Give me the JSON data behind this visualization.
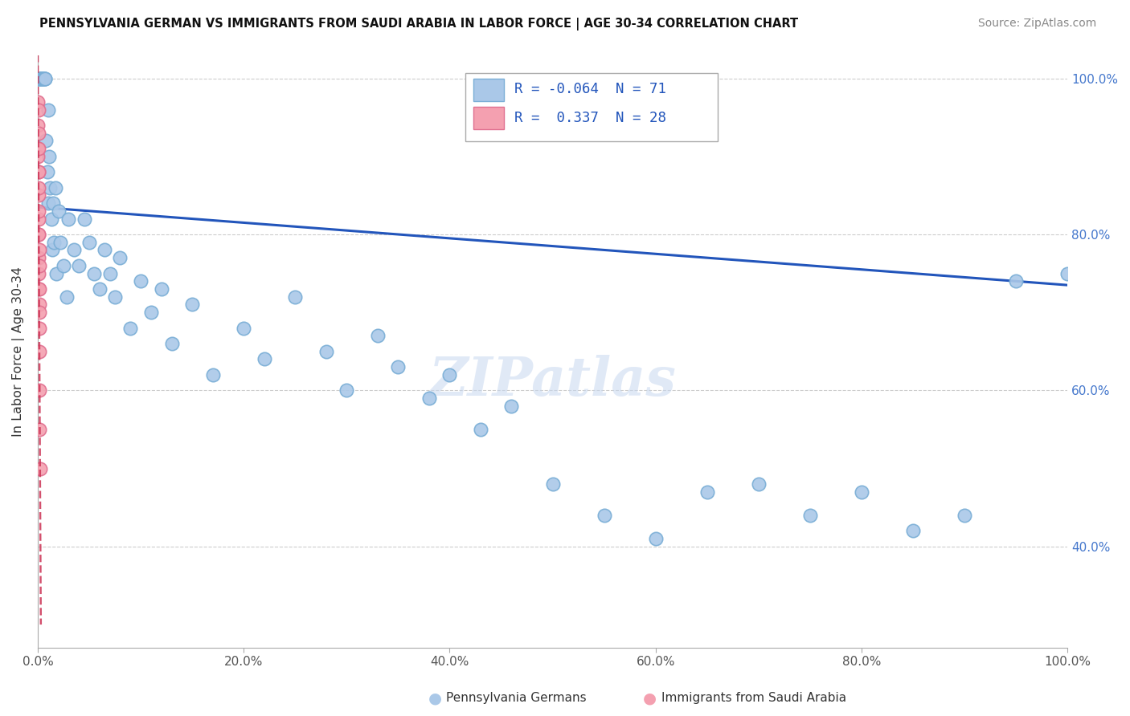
{
  "title": "PENNSYLVANIA GERMAN VS IMMIGRANTS FROM SAUDI ARABIA IN LABOR FORCE | AGE 30-34 CORRELATION CHART",
  "source": "Source: ZipAtlas.com",
  "ylabel": "In Labor Force | Age 30-34",
  "legend_label_blue": "Pennsylvania Germans",
  "legend_label_pink": "Immigrants from Saudi Arabia",
  "R_blue": -0.064,
  "N_blue": 71,
  "R_pink": 0.337,
  "N_pink": 28,
  "blue_color": "#aac8e8",
  "blue_edge": "#7aaed6",
  "pink_color": "#f4a0b0",
  "pink_edge": "#e07090",
  "trend_blue": "#2255bb",
  "trend_pink": "#cc3355",
  "bg_color": "#ffffff",
  "grid_color": "#cccccc",
  "blue_x": [
    0.001,
    0.002,
    0.002,
    0.003,
    0.003,
    0.003,
    0.004,
    0.004,
    0.005,
    0.005,
    0.005,
    0.006,
    0.006,
    0.007,
    0.007,
    0.008,
    0.009,
    0.01,
    0.01,
    0.011,
    0.012,
    0.013,
    0.014,
    0.015,
    0.016,
    0.017,
    0.018,
    0.02,
    0.022,
    0.025,
    0.028,
    0.03,
    0.035,
    0.04,
    0.045,
    0.05,
    0.055,
    0.06,
    0.065,
    0.07,
    0.075,
    0.08,
    0.09,
    0.1,
    0.11,
    0.12,
    0.13,
    0.15,
    0.17,
    0.2,
    0.22,
    0.25,
    0.28,
    0.3,
    0.33,
    0.35,
    0.38,
    0.4,
    0.43,
    0.46,
    0.5,
    0.55,
    0.6,
    0.65,
    0.7,
    0.75,
    0.8,
    0.85,
    0.9,
    0.95,
    1.0
  ],
  "blue_y": [
    1.0,
    1.0,
    1.0,
    1.0,
    1.0,
    1.0,
    1.0,
    1.0,
    1.0,
    1.0,
    1.0,
    1.0,
    1.0,
    1.0,
    1.0,
    0.92,
    0.88,
    0.96,
    0.84,
    0.9,
    0.86,
    0.82,
    0.78,
    0.84,
    0.79,
    0.86,
    0.75,
    0.83,
    0.79,
    0.76,
    0.72,
    0.82,
    0.78,
    0.76,
    0.82,
    0.79,
    0.75,
    0.73,
    0.78,
    0.75,
    0.72,
    0.77,
    0.68,
    0.74,
    0.7,
    0.73,
    0.66,
    0.71,
    0.62,
    0.68,
    0.64,
    0.72,
    0.65,
    0.6,
    0.67,
    0.63,
    0.59,
    0.62,
    0.55,
    0.58,
    0.48,
    0.44,
    0.41,
    0.47,
    0.48,
    0.44,
    0.47,
    0.42,
    0.44,
    0.74,
    0.75
  ],
  "pink_x": [
    0.0002,
    0.0003,
    0.0004,
    0.0004,
    0.0005,
    0.0005,
    0.0006,
    0.0006,
    0.0007,
    0.0007,
    0.0008,
    0.0008,
    0.0009,
    0.0009,
    0.001,
    0.001,
    0.0011,
    0.0011,
    0.0012,
    0.0012,
    0.0013,
    0.0013,
    0.0014,
    0.0015,
    0.0016,
    0.0017,
    0.0018,
    0.002
  ],
  "pink_y": [
    0.94,
    0.91,
    0.97,
    0.9,
    0.96,
    0.88,
    0.93,
    0.85,
    0.91,
    0.82,
    0.88,
    0.8,
    0.86,
    0.77,
    0.83,
    0.75,
    0.8,
    0.73,
    0.78,
    0.71,
    0.76,
    0.68,
    0.73,
    0.7,
    0.65,
    0.6,
    0.55,
    0.5
  ],
  "x_ticks": [
    0.0,
    0.2,
    0.4,
    0.6,
    0.8,
    1.0
  ],
  "x_tick_labels": [
    "0.0%",
    "20.0%",
    "40.0%",
    "60.0%",
    "80.0%",
    "100.0%"
  ],
  "y_ticks": [
    0.4,
    0.6,
    0.8,
    1.0
  ],
  "y_tick_labels": [
    "40.0%",
    "60.0%",
    "80.0%",
    "100.0%"
  ],
  "xlim": [
    0.0,
    1.0
  ],
  "ylim_low": 0.27,
  "ylim_high": 1.03,
  "trend_blue_x0": 0.0,
  "trend_blue_x1": 1.0,
  "trend_blue_y0": 0.835,
  "trend_blue_y1": 0.735
}
